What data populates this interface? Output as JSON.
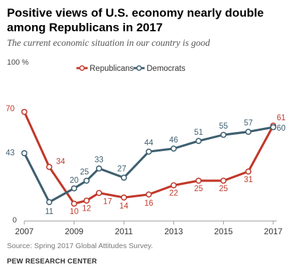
{
  "header": {
    "title": "Positive views of U.S. economy nearly double among Republicans in 2017",
    "subtitle": "The current economic situation in our country is good"
  },
  "footer": {
    "source": "Source: Spring 2017 Global Attitudes Survey.",
    "org": "PEW RESEARCH CENTER"
  },
  "chart_data": {
    "type": "line",
    "title": "Positive views of U.S. economy nearly double among Republicans in 2017",
    "subtitle": "The current economic situation in our country is good",
    "xlabel": "",
    "ylabel": "",
    "y_top_label": "100 %",
    "y_bottom_label": "0",
    "ylim": [
      0,
      100
    ],
    "xlim": [
      2007,
      2017
    ],
    "x_ticks": [
      2007,
      2009,
      2011,
      2013,
      2015,
      2017
    ],
    "grid": false,
    "legend": "top-center",
    "series": [
      {
        "name": "Republicans",
        "color": "#c0392b",
        "x": [
          2007,
          2008,
          2009,
          2009.5,
          2010,
          2011,
          2012,
          2013,
          2014,
          2015,
          2016,
          2017
        ],
        "values": [
          70,
          34,
          10,
          12,
          17,
          14,
          16,
          22,
          25,
          25,
          31,
          61
        ]
      },
      {
        "name": "Democrats",
        "color": "#3f5f70",
        "x": [
          2007,
          2008,
          2009,
          2009.5,
          2010,
          2011,
          2012,
          2013,
          2014,
          2015,
          2016,
          2017
        ],
        "values": [
          43,
          11,
          20,
          25,
          33,
          27,
          44,
          46,
          51,
          55,
          57,
          60
        ]
      }
    ]
  }
}
